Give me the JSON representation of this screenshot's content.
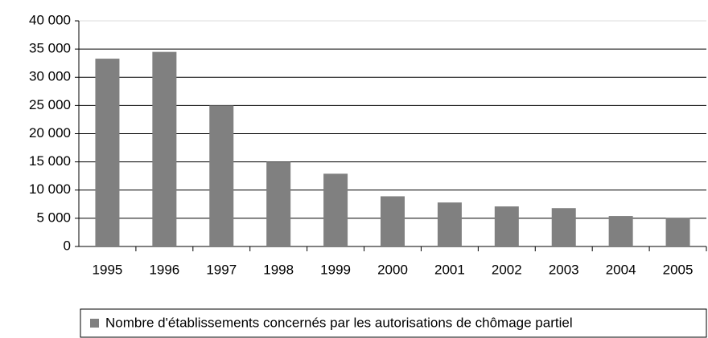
{
  "chart_data": {
    "type": "bar",
    "categories": [
      "1995",
      "1996",
      "1997",
      "1998",
      "1999",
      "2000",
      "2001",
      "2002",
      "2003",
      "2004",
      "2005"
    ],
    "series": [
      {
        "name": "Nombre d'établissements concernés par les autorisations de chômage partiel",
        "color": "#808080",
        "values": [
          33300,
          34500,
          25000,
          15000,
          12900,
          8900,
          7800,
          7100,
          6800,
          5400,
          5100
        ]
      }
    ],
    "ylim": [
      0,
      40000
    ],
    "yticks": [
      0,
      {
        "value": 5000,
        "label": "5 000"
      },
      {
        "value": 10000,
        "label": "10 000"
      },
      {
        "value": 15000,
        "label": "15 000"
      },
      {
        "value": 20000,
        "label": "20 000"
      },
      {
        "value": 25000,
        "label": "25 000"
      },
      {
        "value": 30000,
        "label": "30 000"
      },
      {
        "value": 35000,
        "label": "35 000"
      },
      {
        "value": 40000,
        "label": "40 000"
      }
    ],
    "grid": true,
    "legend": "bottom"
  }
}
